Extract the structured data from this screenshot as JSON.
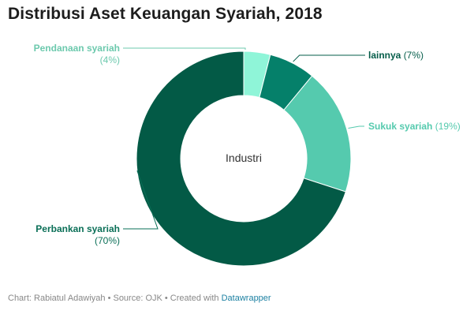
{
  "title": "Distribusi Aset Keuangan Syariah, 2018",
  "chart_data": {
    "type": "pie",
    "center_label": "Industri",
    "slices": [
      {
        "name": "Pendanaan syariah",
        "value": 4,
        "label": "(4%)",
        "color": "#8ff5d8"
      },
      {
        "name": "lainnya",
        "value": 7,
        "label": "(7%)",
        "color": "#05806a"
      },
      {
        "name": "Sukuk syariah",
        "value": 19,
        "label": "(19%)",
        "color": "#55caae"
      },
      {
        "name": "Perbankan syariah",
        "value": 70,
        "label": "(70%)",
        "color": "#035a46"
      }
    ]
  },
  "footer": {
    "text": "Chart: Rabiatul Adawiyah • Source: OJK • Created with ",
    "link": "Datawrapper"
  }
}
